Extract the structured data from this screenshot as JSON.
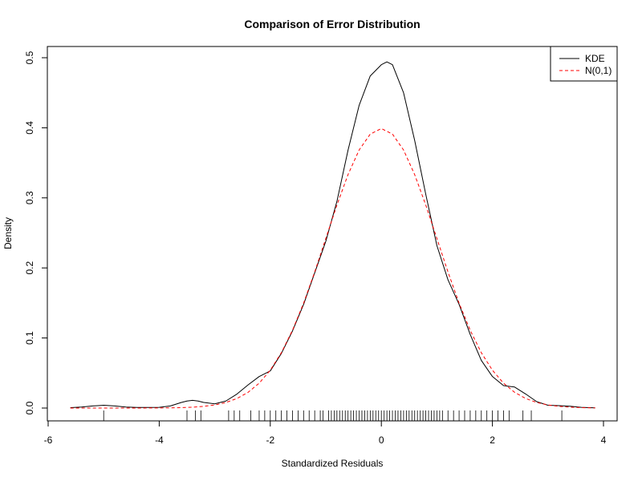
{
  "chart_data": {
    "type": "line",
    "title": "Comparison of Error Distribution",
    "xlabel": "Standardized Residuals",
    "ylabel": "Density",
    "xlim": [
      -6,
      4
    ],
    "ylim": [
      0,
      0.5
    ],
    "x_ticks": [
      "-6",
      "-4",
      "-2",
      "0",
      "2",
      "4"
    ],
    "y_ticks": [
      "0.0",
      "0.1",
      "0.2",
      "0.3",
      "0.4",
      "0.5"
    ],
    "grid": false,
    "legend_position": "top-right",
    "series": [
      {
        "name": "KDE",
        "color": "#000000",
        "style": "solid",
        "x": [
          -5.6,
          -5.4,
          -5.2,
          -5.0,
          -4.8,
          -4.6,
          -4.4,
          -4.2,
          -4.0,
          -3.8,
          -3.6,
          -3.5,
          -3.4,
          -3.3,
          -3.2,
          -3.0,
          -2.8,
          -2.6,
          -2.4,
          -2.2,
          -2.0,
          -1.8,
          -1.6,
          -1.4,
          -1.2,
          -1.0,
          -0.8,
          -0.6,
          -0.4,
          -0.2,
          0.0,
          0.1,
          0.2,
          0.4,
          0.6,
          0.8,
          1.0,
          1.2,
          1.4,
          1.6,
          1.8,
          2.0,
          2.2,
          2.4,
          2.6,
          2.8,
          3.0,
          3.2,
          3.4,
          3.6,
          3.85
        ],
        "y": [
          0.0005,
          0.0015,
          0.003,
          0.004,
          0.003,
          0.0015,
          0.0008,
          0.0008,
          0.001,
          0.003,
          0.008,
          0.01,
          0.011,
          0.01,
          0.008,
          0.006,
          0.01,
          0.02,
          0.033,
          0.045,
          0.053,
          0.078,
          0.11,
          0.148,
          0.193,
          0.238,
          0.295,
          0.368,
          0.432,
          0.474,
          0.49,
          0.494,
          0.49,
          0.45,
          0.382,
          0.305,
          0.232,
          0.183,
          0.148,
          0.105,
          0.068,
          0.045,
          0.032,
          0.03,
          0.02,
          0.009,
          0.004,
          0.0035,
          0.0025,
          0.001,
          0.0003
        ]
      },
      {
        "name": "N(0,1)",
        "color": "#ff0000",
        "style": "dashed",
        "x": [
          -5.6,
          -5.4,
          -5.2,
          -5.0,
          -4.8,
          -4.6,
          -4.4,
          -4.2,
          -4.0,
          -3.8,
          -3.6,
          -3.4,
          -3.2,
          -3.0,
          -2.8,
          -2.6,
          -2.4,
          -2.2,
          -2.0,
          -1.8,
          -1.6,
          -1.4,
          -1.2,
          -1.0,
          -0.8,
          -0.6,
          -0.4,
          -0.2,
          0.0,
          0.2,
          0.4,
          0.6,
          0.8,
          1.0,
          1.2,
          1.4,
          1.6,
          1.8,
          2.0,
          2.2,
          2.4,
          2.6,
          2.8,
          3.0,
          3.2,
          3.4,
          3.6,
          3.85
        ],
        "y": [
          0.0,
          0.0,
          0.0,
          0.0,
          0.0,
          0.0,
          0.0,
          0.0001,
          0.0001,
          0.0003,
          0.0006,
          0.0012,
          0.0024,
          0.0044,
          0.0079,
          0.0136,
          0.0224,
          0.0355,
          0.054,
          0.079,
          0.111,
          0.1497,
          0.1942,
          0.242,
          0.2897,
          0.3332,
          0.3683,
          0.391,
          0.3989,
          0.391,
          0.3683,
          0.3332,
          0.2897,
          0.242,
          0.1942,
          0.1497,
          0.111,
          0.079,
          0.054,
          0.0355,
          0.0224,
          0.0136,
          0.0079,
          0.0044,
          0.0024,
          0.0012,
          0.0006,
          0.0002
        ]
      }
    ],
    "rug": [
      -5.0,
      -3.5,
      -3.35,
      -3.25,
      -2.75,
      -2.65,
      -2.55,
      -2.35,
      -2.2,
      -2.1,
      -2.0,
      -1.9,
      -1.8,
      -1.7,
      -1.6,
      -1.5,
      -1.4,
      -1.3,
      -1.2,
      -1.1,
      -1.05,
      -0.95,
      -0.9,
      -0.85,
      -0.8,
      -0.75,
      -0.7,
      -0.65,
      -0.6,
      -0.55,
      -0.5,
      -0.45,
      -0.4,
      -0.35,
      -0.3,
      -0.25,
      -0.2,
      -0.15,
      -0.1,
      -0.05,
      0.0,
      0.05,
      0.1,
      0.15,
      0.2,
      0.25,
      0.3,
      0.35,
      0.4,
      0.45,
      0.5,
      0.55,
      0.6,
      0.65,
      0.7,
      0.75,
      0.8,
      0.85,
      0.9,
      0.95,
      1.0,
      1.05,
      1.1,
      1.2,
      1.3,
      1.4,
      1.5,
      1.6,
      1.7,
      1.8,
      1.9,
      2.0,
      2.1,
      2.2,
      2.3,
      2.55,
      2.7,
      3.25
    ]
  }
}
